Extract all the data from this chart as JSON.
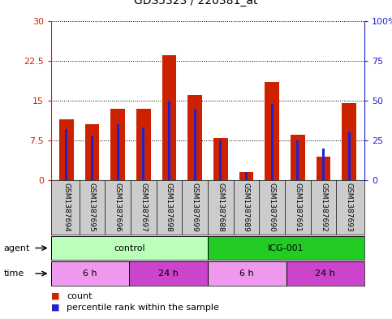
{
  "title": "GDS5323 / 220381_at",
  "samples": [
    "GSM1387694",
    "GSM1387695",
    "GSM1387696",
    "GSM1387697",
    "GSM1387698",
    "GSM1387699",
    "GSM1387688",
    "GSM1387689",
    "GSM1387690",
    "GSM1387691",
    "GSM1387692",
    "GSM1387693"
  ],
  "count_values": [
    11.5,
    10.5,
    13.5,
    13.5,
    23.5,
    16.0,
    8.0,
    1.5,
    18.5,
    8.5,
    4.5,
    14.5
  ],
  "percentile_values": [
    32,
    28,
    35,
    33,
    50,
    45,
    25,
    5,
    48,
    25,
    20,
    30
  ],
  "ylim_left": [
    0,
    30
  ],
  "ylim_right": [
    0,
    100
  ],
  "yticks_left": [
    0,
    7.5,
    15,
    22.5,
    30
  ],
  "ytick_labels_left": [
    "0",
    "7.5",
    "15",
    "22.5",
    "30"
  ],
  "yticks_right": [
    0,
    25,
    50,
    75,
    100
  ],
  "ytick_labels_right": [
    "0",
    "25",
    "50",
    "75",
    "100%"
  ],
  "bar_color_red": "#cc2200",
  "bar_color_blue": "#2222cc",
  "agent_groups": [
    {
      "label": "control",
      "start": 0,
      "end": 6,
      "color": "#bbffbb"
    },
    {
      "label": "ICG-001",
      "start": 6,
      "end": 12,
      "color": "#22cc22"
    }
  ],
  "time_groups": [
    {
      "label": "6 h",
      "start": 0,
      "end": 3,
      "color": "#ee99ee"
    },
    {
      "label": "24 h",
      "start": 3,
      "end": 6,
      "color": "#cc44cc"
    },
    {
      "label": "6 h",
      "start": 6,
      "end": 9,
      "color": "#ee99ee"
    },
    {
      "label": "24 h",
      "start": 9,
      "end": 12,
      "color": "#cc44cc"
    }
  ],
  "legend_count_color": "#cc2200",
  "legend_percentile_color": "#2222cc",
  "sample_bg_color": "#cccccc",
  "plot_bg": "#ffffff"
}
